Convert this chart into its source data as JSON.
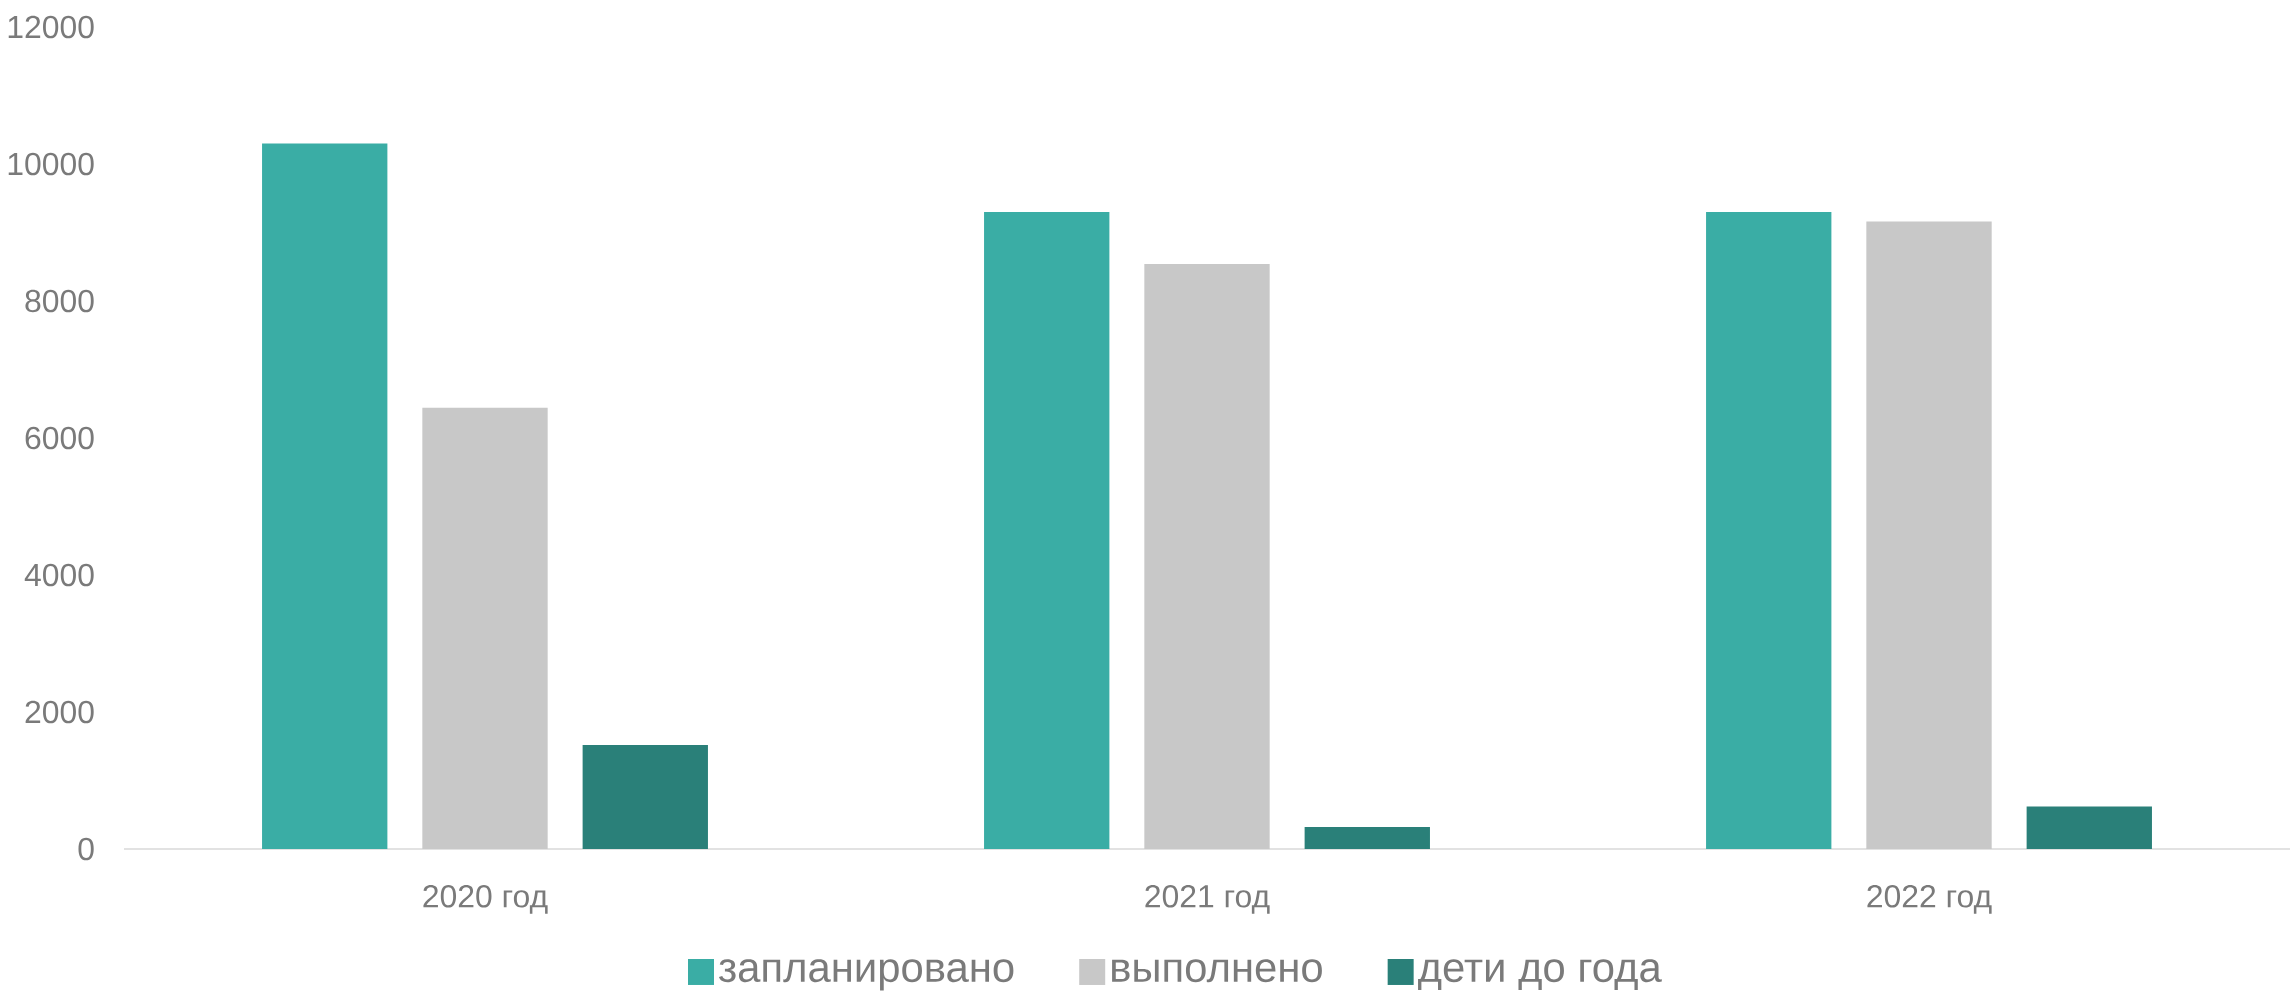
{
  "chart_data": {
    "type": "bar",
    "categories": [
      "2020 год",
      "2021 год",
      "2022 год"
    ],
    "series": [
      {
        "name": "запланировано",
        "color": "#3aada5",
        "values": [
          10300,
          9300,
          9300
        ]
      },
      {
        "name": "выполнено",
        "color": "#c8c8c8",
        "values": [
          6440,
          8540,
          9160
        ]
      },
      {
        "name": "дети до года",
        "color": "#2a8079",
        "values": [
          1520,
          320,
          620
        ]
      }
    ],
    "ylim": [
      0,
      12000
    ],
    "yticks": [
      0,
      2000,
      4000,
      6000,
      8000,
      10000,
      12000
    ],
    "grid": false,
    "legend": "bottom"
  }
}
